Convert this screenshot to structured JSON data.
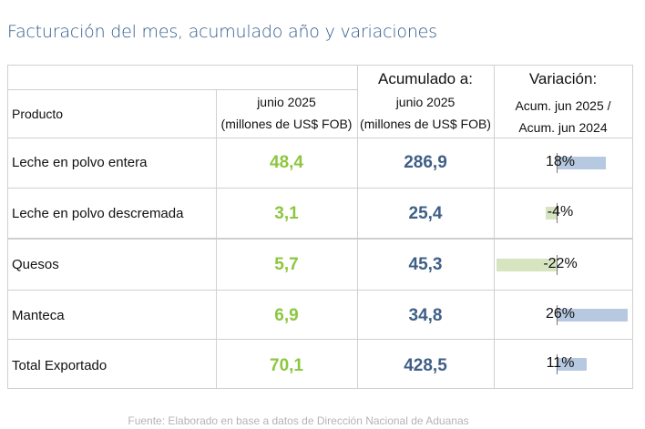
{
  "title": "Facturación del mes, acumulado año y variaciones",
  "header": {
    "producto": "Producto",
    "month_period": "junio 2025",
    "month_unit": "(millones de US$ FOB)",
    "acum_label": "Acumulado a:",
    "acum_period": "junio 2025",
    "acum_unit": "(millones de US$ FOB)",
    "var_label": "Variación:",
    "var_line1": "Acum. jun 2025 /",
    "var_line2": "Acum. jun 2024"
  },
  "rows": [
    {
      "product": "Leche en polvo entera",
      "month": "48,4",
      "acum": "286,9",
      "var_label": "18%",
      "var_value": 18
    },
    {
      "product": "Leche en polvo descremada",
      "month": "3,1",
      "acum": "25,4",
      "var_label": "-4%",
      "var_value": -4
    },
    {
      "product": "Quesos",
      "month": "5,7",
      "acum": "45,3",
      "var_label": "-22%",
      "var_value": -22
    },
    {
      "product": "Manteca",
      "month": "6,9",
      "acum": "34,8",
      "var_label": "26%",
      "var_value": 26
    },
    {
      "product": "Total Exportado",
      "month": "70,1",
      "acum": "428,5",
      "var_label": "11%",
      "var_value": 11
    }
  ],
  "colors": {
    "month_value": "#8dc641",
    "acum_value": "#3f5f86",
    "bar_positive": "#b6c9e0",
    "bar_negative": "#d6e4c0",
    "title": "#2f5a8a"
  },
  "source": "Fuente: Elaborado en base a datos de Dirección Nacional de Aduanas"
}
